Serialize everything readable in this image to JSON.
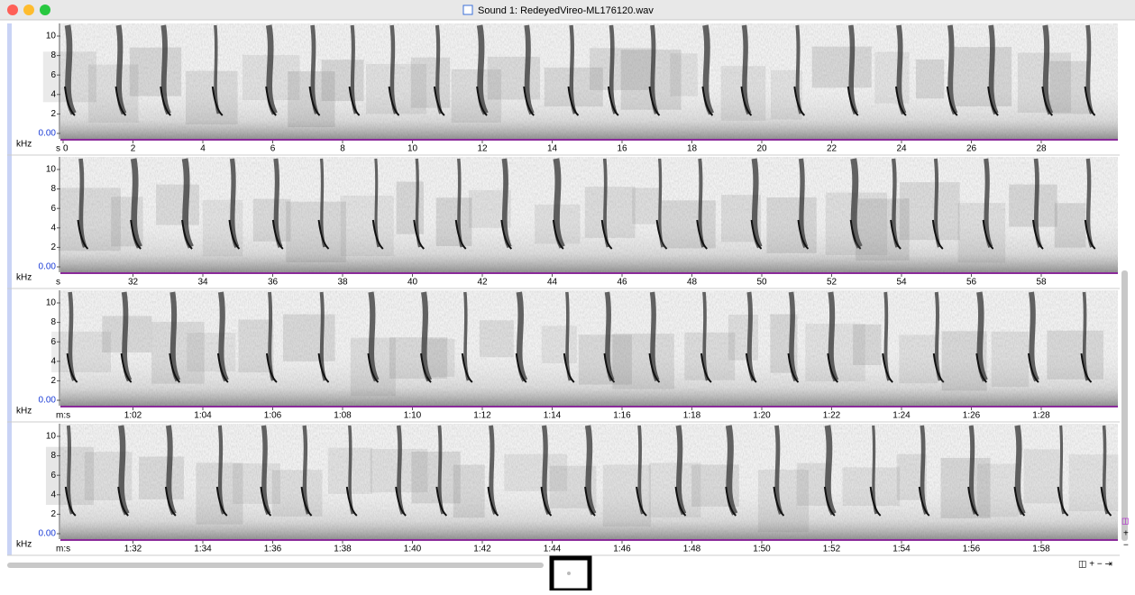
{
  "window": {
    "title": "Sound 1: RedeyedVireo-ML176120.wav"
  },
  "panels": [
    {
      "y_labels": [
        "10",
        "8",
        "6",
        "4",
        "2",
        "0.00"
      ],
      "y_unit": "kHz",
      "x_unit": "s",
      "x_labels": [
        "0",
        "2",
        "4",
        "6",
        "8",
        "10",
        "12",
        "14",
        "16",
        "18",
        "20",
        "22",
        "24",
        "26",
        "28"
      ]
    },
    {
      "y_labels": [
        "10",
        "8",
        "6",
        "4",
        "2",
        "0.00"
      ],
      "y_unit": "kHz",
      "x_unit": "s",
      "x_labels": [
        "32",
        "34",
        "36",
        "38",
        "40",
        "42",
        "44",
        "46",
        "48",
        "50",
        "52",
        "54",
        "56",
        "58"
      ]
    },
    {
      "y_labels": [
        "10",
        "8",
        "6",
        "4",
        "2",
        "0.00"
      ],
      "y_unit": "kHz",
      "x_unit": "m:s",
      "x_labels": [
        "1:02",
        "1:04",
        "1:06",
        "1:08",
        "1:10",
        "1:12",
        "1:14",
        "1:16",
        "1:18",
        "1:20",
        "1:22",
        "1:24",
        "1:26",
        "1:28"
      ]
    },
    {
      "y_labels": [
        "10",
        "8",
        "6",
        "4",
        "2",
        "0.00"
      ],
      "y_unit": "kHz",
      "x_unit": "m:s",
      "x_labels": [
        "1:32",
        "1:34",
        "1:36",
        "1:38",
        "1:40",
        "1:42",
        "1:44",
        "1:46",
        "1:48",
        "1:50",
        "1:52",
        "1:54",
        "1:56",
        "1:58"
      ]
    }
  ]
}
